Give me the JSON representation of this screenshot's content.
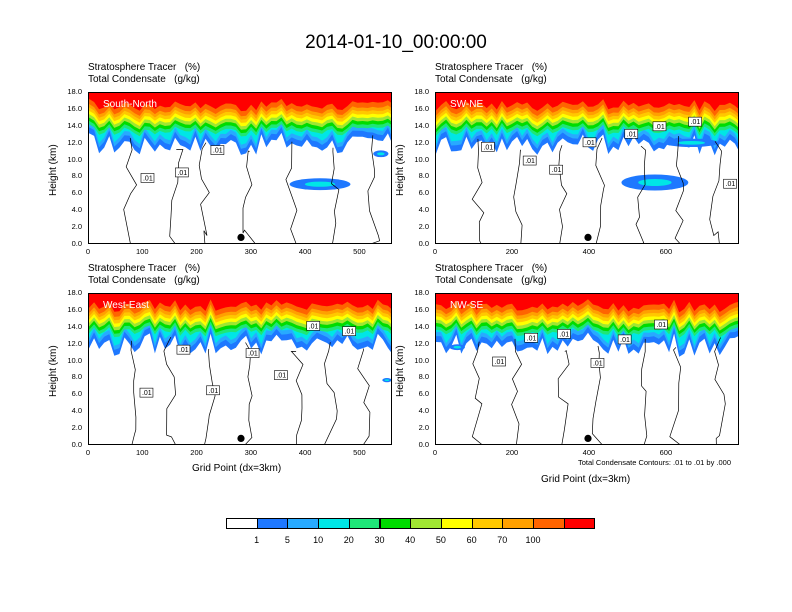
{
  "title": "2014-01-10_00:00:00",
  "panel_header_left": "Stratosphere Tracer   (%)",
  "panel_header_left2": "Total Condensate   (g/kg)",
  "y_axis_label": "Height (km)",
  "x_axis_label": "Grid Point (dx=3km)",
  "contour_note": "Total Condensate Contours: .01 to .01 by .000",
  "colors": {
    "levels": [
      "#ffffff",
      "#1e78ff",
      "#28aaff",
      "#00e6e6",
      "#1ee678",
      "#00dc00",
      "#a0e632",
      "#ffff00",
      "#ffc800",
      "#ffa000",
      "#ff6400",
      "#ff0000"
    ]
  },
  "colorbar": {
    "labels": [
      "1",
      "5",
      "10",
      "20",
      "30",
      "40",
      "50",
      "60",
      "70",
      "100"
    ]
  },
  "chart_data": [
    {
      "type": "heatmap",
      "panel": "South-North",
      "title_lines": [
        "Stratosphere Tracer   (%)",
        "Total Condensate   (g/kg)"
      ],
      "ylabel": "Height (km)",
      "ylim": [
        0,
        18
      ],
      "yticks": [
        "0.0",
        "2.0",
        "4.0",
        "6.0",
        "8.0",
        "10.0",
        "12.0",
        "14.0",
        "16.0",
        "18.0"
      ],
      "xlim": [
        0,
        560
      ],
      "xticks": [
        "0",
        "100",
        "200",
        "300",
        "400",
        "500"
      ],
      "marker_x": 280,
      "contour_labels": [
        ".01",
        ".01",
        ".01"
      ]
    },
    {
      "type": "heatmap",
      "panel": "SW-NE",
      "title_lines": [
        "Stratosphere Tracer   (%)",
        "Total Condensate   (g/kg)"
      ],
      "ylabel": "Height (km)",
      "ylim": [
        0,
        18
      ],
      "yticks": [
        "0.0",
        "2.0",
        "4.0",
        "6.0",
        "8.0",
        "10.0",
        "12.0",
        "14.0",
        "16.0",
        "18.0"
      ],
      "xlim": [
        0,
        790
      ],
      "xticks": [
        "0",
        "200",
        "400",
        "600"
      ],
      "marker_x": 395,
      "contour_labels": [
        ".01",
        ".01",
        ".01",
        ".01",
        ".01",
        ".01",
        ".01",
        ".01"
      ]
    },
    {
      "type": "heatmap",
      "panel": "West-East",
      "title_lines": [
        "Stratosphere Tracer   (%)",
        "Total Condensate   (g/kg)"
      ],
      "ylabel": "Height (km)",
      "ylim": [
        0,
        18
      ],
      "yticks": [
        "0.0",
        "2.0",
        "4.0",
        "6.0",
        "8.0",
        "10.0",
        "12.0",
        "14.0",
        "16.0",
        "18.0"
      ],
      "xlim": [
        0,
        560
      ],
      "xticks": [
        "0",
        "100",
        "200",
        "300",
        "400",
        "500"
      ],
      "marker_x": 280,
      "contour_labels": [
        ".01",
        ".01",
        ".01",
        ".01",
        ".01",
        ".01",
        ".01"
      ]
    },
    {
      "type": "heatmap",
      "panel": "NW-SE",
      "title_lines": [
        "Stratosphere Tracer   (%)",
        "Total Condensate   (g/kg)"
      ],
      "ylabel": "Height (km)",
      "ylim": [
        0,
        18
      ],
      "yticks": [
        "0.0",
        "2.0",
        "4.0",
        "6.0",
        "8.0",
        "10.0",
        "12.0",
        "14.0",
        "16.0",
        "18.0"
      ],
      "xlim": [
        0,
        790
      ],
      "xticks": [
        "0",
        "200",
        "400",
        "600"
      ],
      "marker_x": 395,
      "contour_labels": [
        ".01",
        ".01",
        ".01",
        ".01",
        ".01",
        ".01"
      ]
    }
  ]
}
